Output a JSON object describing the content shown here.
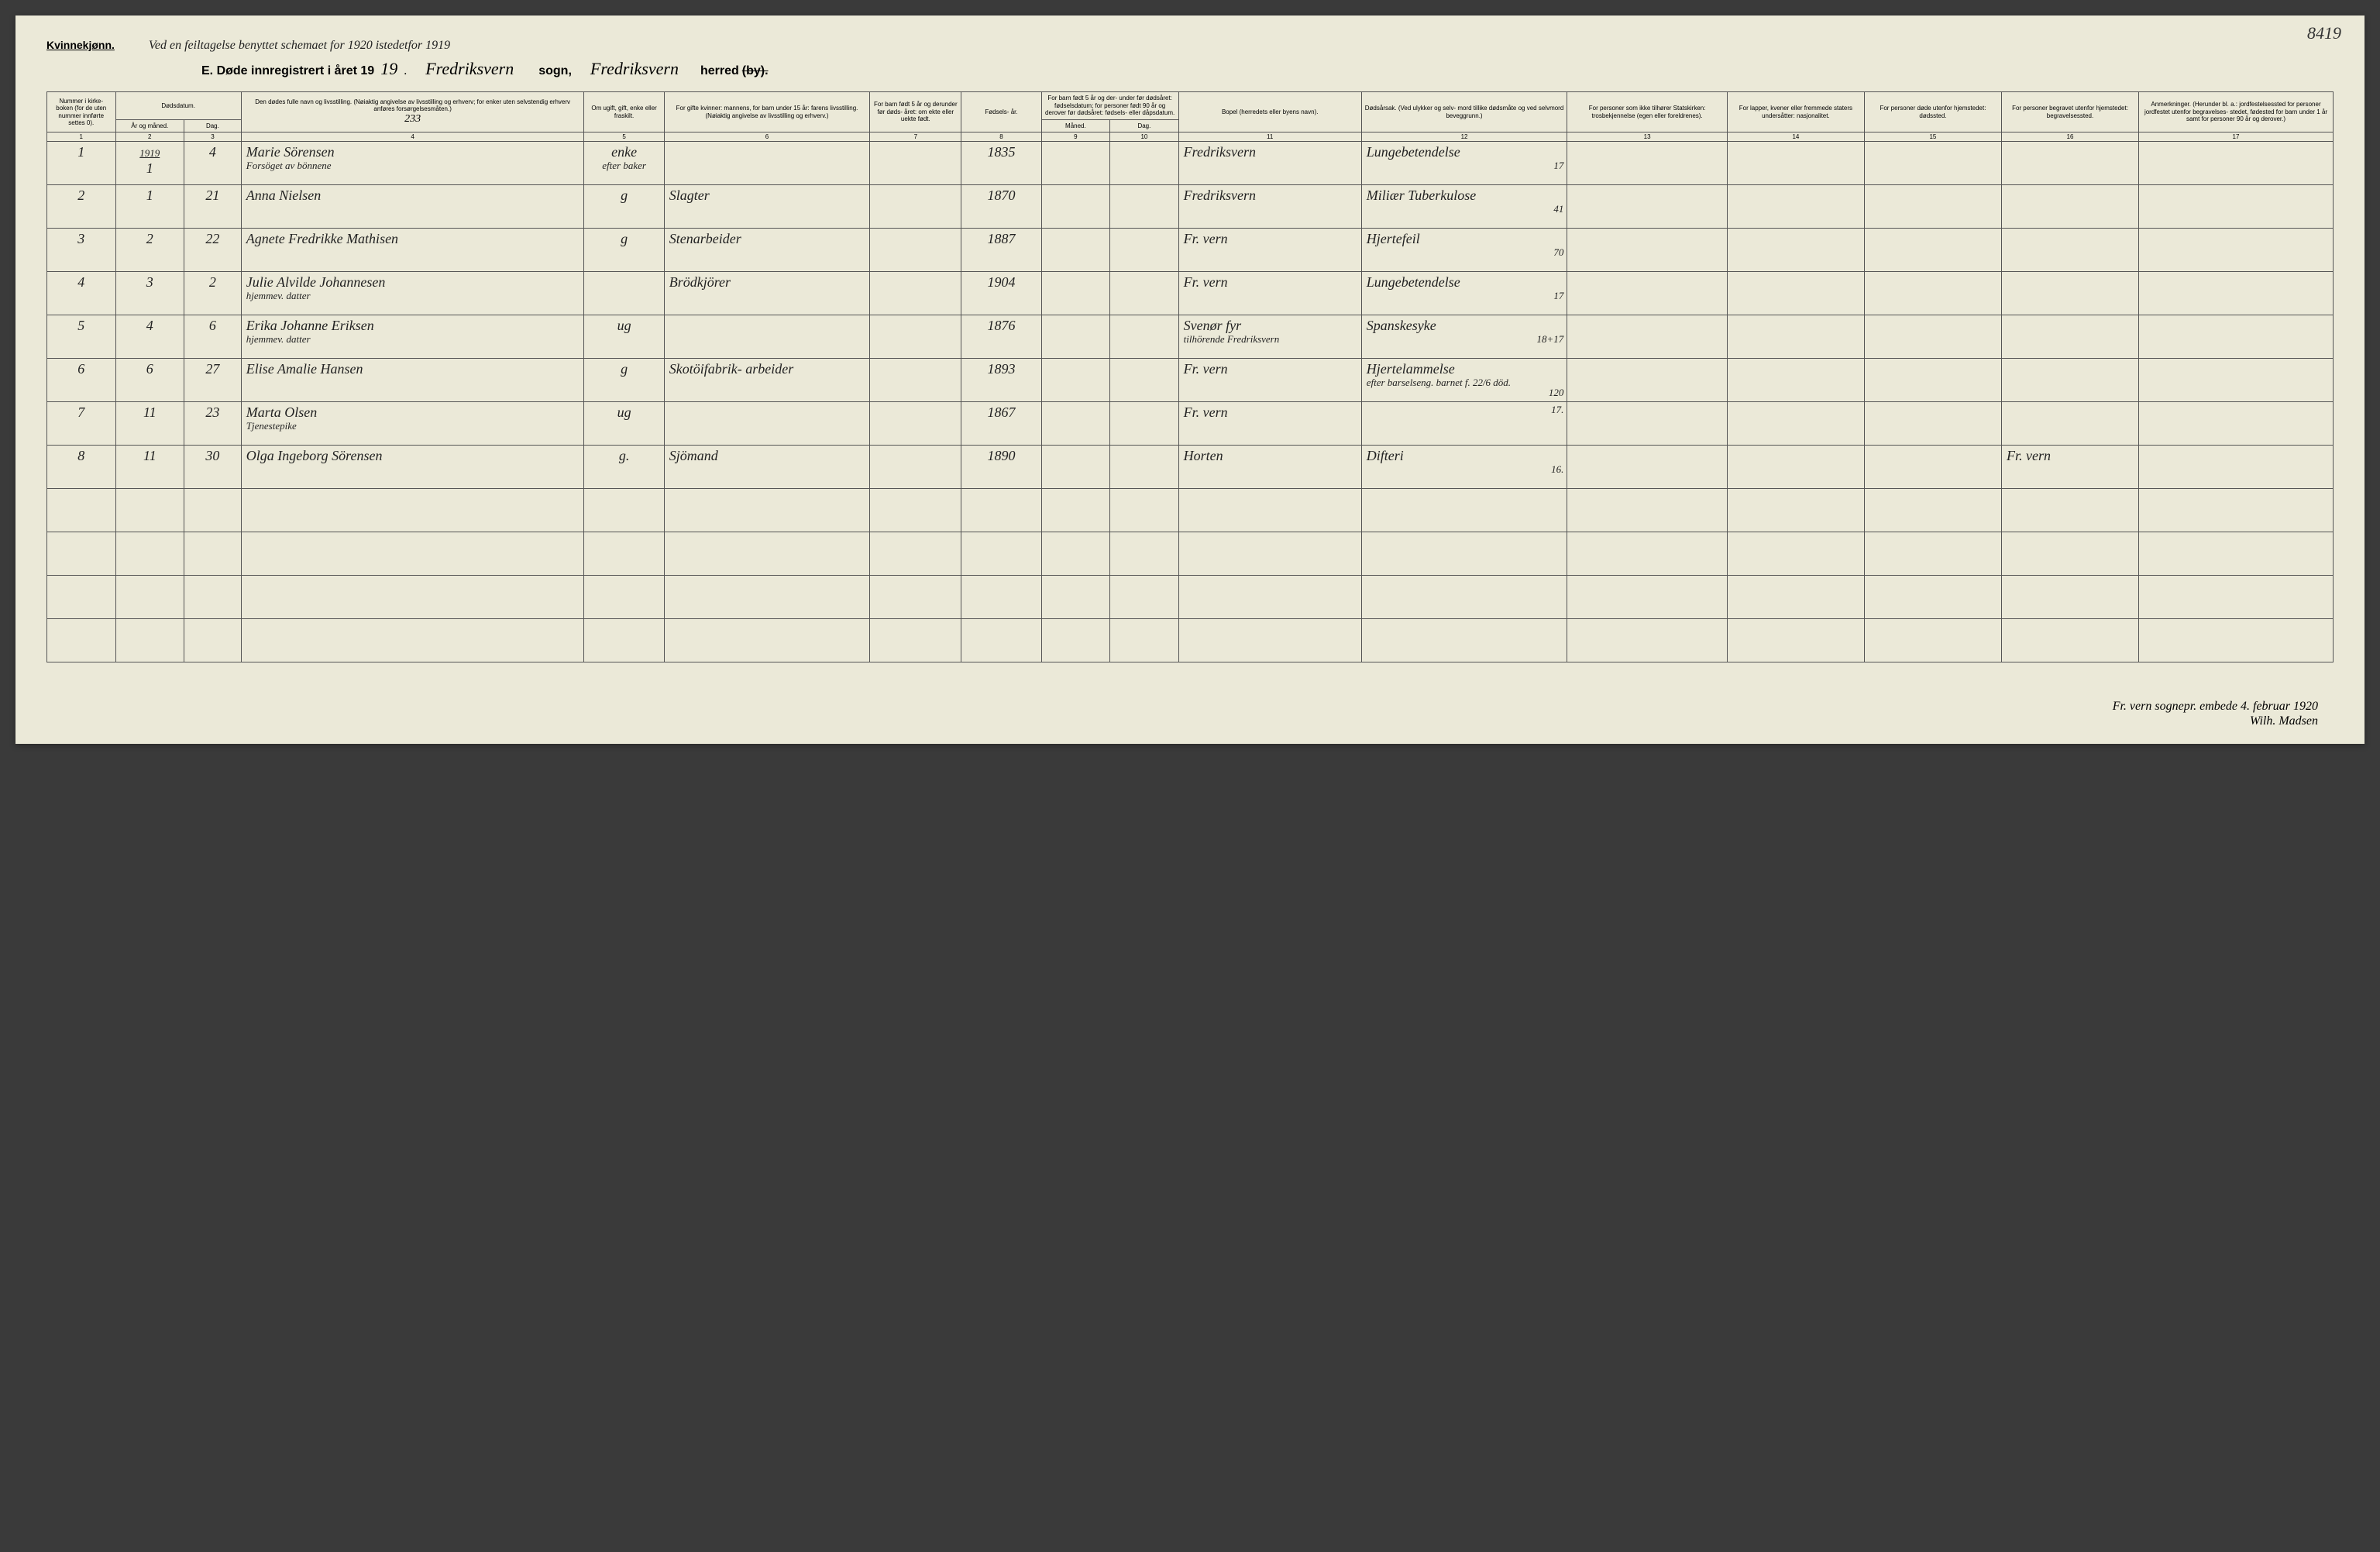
{
  "page_corner_number": "8419",
  "gender_label": "Kvinnekjønn.",
  "top_note": "Ved en feiltagelse benyttet schemaet for 1920 istedetfor 1919",
  "title": {
    "printed_prefix": "E.  Døde innregistrert i året 19",
    "year_hand": "19",
    "sogn_hand": "Fredriksvern",
    "sogn_label": "sogn,",
    "herred_hand": "Fredriksvern",
    "herred_label": "herred",
    "by_struck": "(by)."
  },
  "headers": {
    "c1": "Nummer i kirke- boken (for de uten nummer innførte settes 0).",
    "c2": "Dødsdatum.",
    "c2a": "År og måned.",
    "c2b": "Dag.",
    "c3_note": "233",
    "c4": "Den dødes fulle navn og livsstilling. (Nøiaktig angivelse av livsstilling og erhverv; for enker uten selvstendig erhverv anføres forsørgelsesmåten.)",
    "c5": "Om ugift, gift, enke eller fraskilt.",
    "c6": "For gifte kvinner: mannens, for barn under 15 år: farens livsstilling. (Nøiaktig angivelse av livsstilling og erhverv.)",
    "c7": "For barn født 5 år og derunder før døds- året: om ekte eller uekte født.",
    "c8": "Fødsels- år.",
    "c9_10": "For barn født 5 år og der- under før dødsåret: fødselsdatum; for personer født 90 år og derover før dødsåret: fødsels- eller dåpsdatum.",
    "c9": "Måned.",
    "c10": "Dag.",
    "c11": "Bopel (herredets eller byens navn).",
    "c12": "Dødsårsak. (Ved ulykker og selv- mord tillike dødsmåte og ved selvmord beveggrunn.)",
    "c13": "For personer som ikke tilhører Statskirken: trosbekjennelse (egen eller foreldrenes).",
    "c14": "For lapper, kvener eller fremmede staters undersåtter: nasjonalitet.",
    "c15": "For personer døde utenfor hjemstedet: dødssted.",
    "c16": "For personer begravet utenfor hjemstedet: begravelsessted.",
    "c17": "Anmerkninger. (Herunder bl. a.: jordfestelsessted for personer jordfestet utenfor begravelses- stedet, fødested for barn under 1 år samt for personer 90 år og derover.)"
  },
  "colnums": [
    "1",
    "2",
    "3",
    "4",
    "5",
    "6",
    "7",
    "8",
    "9",
    "10",
    "11",
    "12",
    "13",
    "14",
    "15",
    "16",
    "17"
  ],
  "rows": [
    {
      "num": "1",
      "year": "1919",
      "month": "1",
      "day": "4",
      "name": "Marie Sörensen",
      "name_sub": "Forsöget av bönnene",
      "status": "enke",
      "status_sub": "efter baker",
      "spouse": "",
      "birthyear": "1835",
      "bopel": "Fredriksvern",
      "cause": "Lungebetendelse",
      "cause_code": "17"
    },
    {
      "num": "2",
      "month": "1",
      "day": "21",
      "name": "Anna Nielsen",
      "status": "g",
      "spouse": "Slagter",
      "birthyear": "1870",
      "bopel": "Fredriksvern",
      "cause": "Miliær Tuberkulose",
      "cause_code": "41"
    },
    {
      "num": "3",
      "month": "2",
      "day": "22",
      "name": "Agnete Fredrikke Mathisen",
      "status": "g",
      "spouse": "Stenarbeider",
      "birthyear": "1887",
      "bopel": "Fr. vern",
      "cause": "Hjertefeil",
      "cause_code": "70"
    },
    {
      "num": "4",
      "month": "3",
      "day": "2",
      "name": "Julie Alvilde Johannesen",
      "name_sub": "hjemmev. datter",
      "status": "",
      "spouse": "Brödkjörer",
      "birthyear": "1904",
      "bopel": "Fr. vern",
      "cause": "Lungebetendelse",
      "cause_code": "17"
    },
    {
      "num": "5",
      "month": "4",
      "day": "6",
      "name": "Erika Johanne Eriksen",
      "name_sub": "hjemmev. datter",
      "status": "ug",
      "spouse": "",
      "birthyear": "1876",
      "bopel": "Svenør fyr",
      "bopel_sub": "tilhörende Fredriksvern",
      "cause": "Spanskesyke",
      "cause_code": "18+17"
    },
    {
      "num": "6",
      "month": "6",
      "day": "27",
      "name": "Elise Amalie Hansen",
      "status": "g",
      "spouse": "Skotöifabrik- arbeider",
      "birthyear": "1893",
      "bopel": "Fr. vern",
      "cause": "Hjertelammelse",
      "cause_sub": "efter barselseng. barnet f. 22/6 död.",
      "cause_code": "120"
    },
    {
      "num": "7",
      "month": "11",
      "day": "23",
      "name": "Marta Olsen",
      "name_sub": "Tjenestepike",
      "status": "ug",
      "spouse": "",
      "birthyear": "1867",
      "bopel": "Fr. vern",
      "cause": "",
      "cause_code": "17."
    },
    {
      "num": "8",
      "month": "11",
      "day": "30",
      "name": "Olga Ingeborg Sörensen",
      "status": "g.",
      "spouse": "Sjömand",
      "birthyear": "1890",
      "bopel": "Horten",
      "cause": "Difteri",
      "cause_code": "16.",
      "c16": "Fr. vern"
    }
  ],
  "footer": {
    "line1": "Fr. vern sognepr. embede 4. februar 1920",
    "line2": "Wilh. Madsen"
  }
}
